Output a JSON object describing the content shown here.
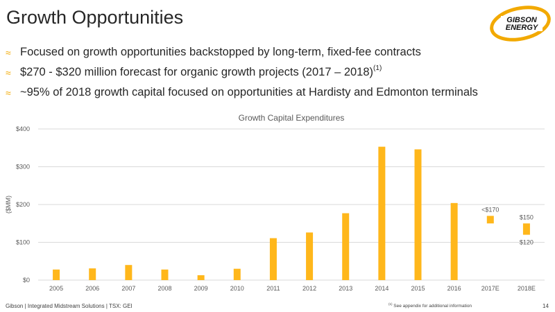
{
  "page": {
    "title": "Growth Opportunities",
    "logo_text": [
      "GIBSON",
      "ENERGY"
    ],
    "bullets": [
      {
        "text": "Focused on growth opportunities backstopped by long-term, fixed-fee contracts",
        "sup": ""
      },
      {
        "text": "$270 - $320 million forecast for organic growth projects (2017 – 2018)",
        "sup": "(1)"
      },
      {
        "text": "~95% of 2018 growth capital focused on opportunities at Hardisty and Edmonton terminals",
        "sup": ""
      }
    ],
    "bullet_mark": "≈",
    "footer_left": "Gibson  |  Integrated Midstream Solutions  |  TSX: GEI",
    "footer_note_sup": "(1)",
    "footer_note": " See appendix for additional information",
    "page_number": "14"
  },
  "colors": {
    "bar": "#FFB71B",
    "grid": "#d9d9d9",
    "text": "#595959",
    "accent": "#F2A900"
  },
  "chart_data": {
    "type": "bar",
    "title": "Growth Capital Expenditures",
    "ylabel": "($MM)",
    "ylim": [
      0,
      400
    ],
    "yticks": [
      "$0",
      "$100",
      "$200",
      "$300",
      "$400"
    ],
    "categories": [
      "2005",
      "2006",
      "2007",
      "2008",
      "2009",
      "2010",
      "2011",
      "2012",
      "2013",
      "2014",
      "2015",
      "2016",
      "2017E",
      "2018E"
    ],
    "values": [
      28,
      31,
      40,
      28,
      13,
      30,
      111,
      126,
      177,
      353,
      346,
      204,
      null,
      null
    ],
    "ranges": [
      {
        "category": "2017E",
        "low": 150,
        "high": 170,
        "label_high": "<$170",
        "label_low": ""
      },
      {
        "category": "2018E",
        "low": 120,
        "high": 150,
        "label_high": "$150",
        "label_low": "$120"
      }
    ],
    "grid": true,
    "legend": "none"
  }
}
